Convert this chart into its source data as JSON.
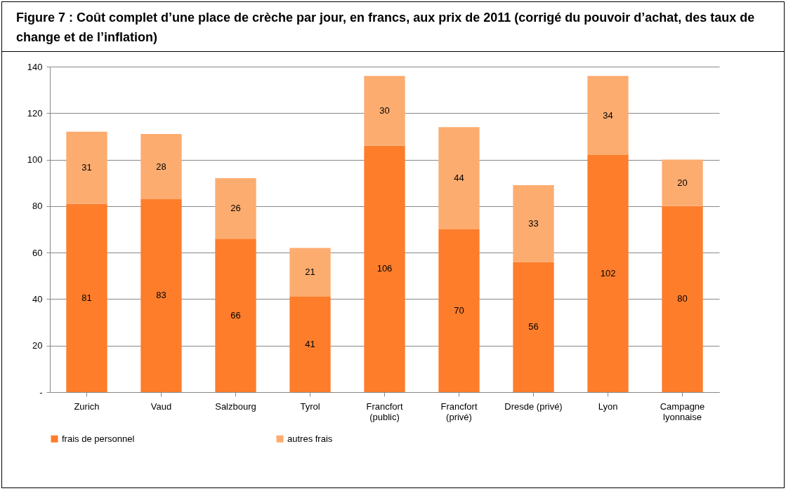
{
  "chart_data": {
    "type": "bar",
    "title": "Figure 7 : Coût complet d’une place de crèche par jour, en francs, aux prix de 2011 (corrigé du pouvoir d’achat, des taux de change et de l’inflation)",
    "categories": [
      "Zurich",
      "Vaud",
      "Salzbourg",
      "Tyrol",
      "Francfort (public)",
      "Francfort (privé)",
      "Dresde (privé)",
      "Lyon",
      "Campagne lyonnaise"
    ],
    "series": [
      {
        "name": "frais de personnel",
        "color": "#fd7d2b",
        "values": [
          81,
          83,
          66,
          41,
          106,
          70,
          56,
          102,
          80
        ]
      },
      {
        "name": "autres frais",
        "color": "#fdac6f",
        "values": [
          31,
          28,
          26,
          21,
          30,
          44,
          33,
          34,
          20
        ]
      }
    ],
    "stacked": true,
    "data_labels": true,
    "ylim": [
      0,
      140
    ],
    "yticks": [
      {
        "value": 0,
        "label": "-"
      },
      20,
      40,
      60,
      80,
      100,
      120,
      140
    ],
    "grid": "y",
    "legend": "bottom"
  }
}
